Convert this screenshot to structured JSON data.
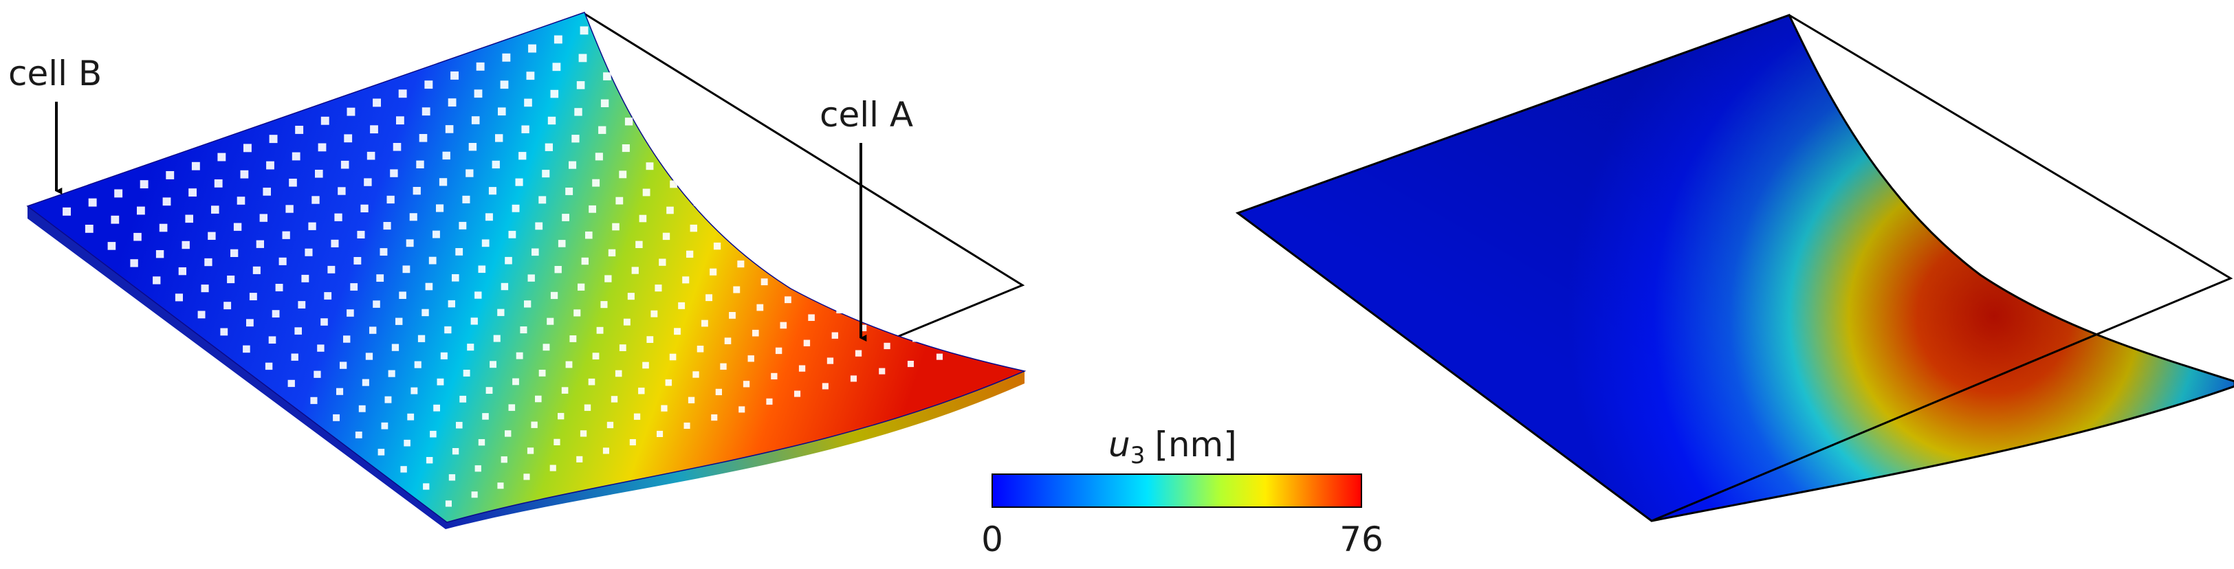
{
  "annotations": {
    "cell_b": "cell B",
    "cell_a": "cell A"
  },
  "colorbar": {
    "symbol": "u",
    "subscript": "3",
    "unit": "[nm]",
    "min_label": "0",
    "max_label": "76",
    "min": 0,
    "max": 76,
    "colormap": [
      "#0000ff",
      "#00e5ff",
      "#f7ff00",
      "#ff6600",
      "#ff0000"
    ]
  },
  "colors": {
    "outline": "#000000",
    "hole": "#ffffff"
  }
}
